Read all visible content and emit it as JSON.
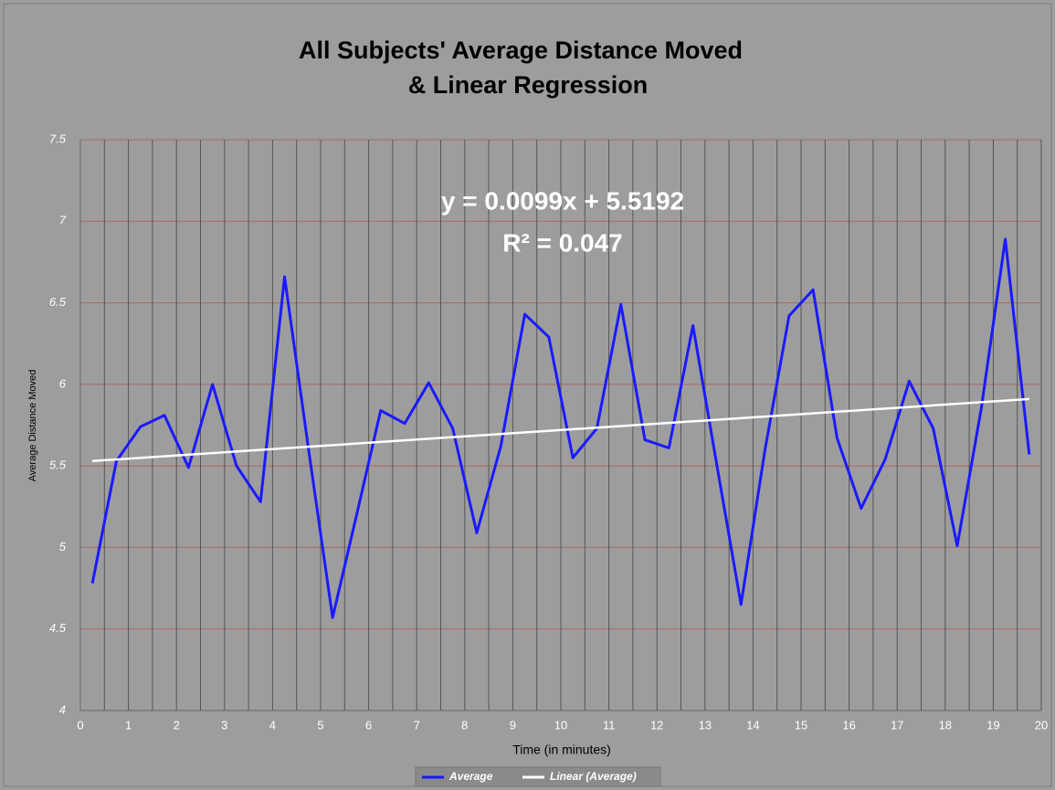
{
  "chart_data": {
    "type": "line",
    "title": [
      "All Subjects' Average Distance Moved",
      "& Linear Regression"
    ],
    "annotations": [
      "y = 0.0099x + 5.5192",
      "R² = 0.047"
    ],
    "x_label": "Time (in minutes)",
    "y_label": "Average Distance Moved",
    "x": [
      0.25,
      0.75,
      1.25,
      1.75,
      2.25,
      2.75,
      3.25,
      3.75,
      4.25,
      4.75,
      5.25,
      5.75,
      6.25,
      6.75,
      7.25,
      7.75,
      8.25,
      8.75,
      9.25,
      9.75,
      10.25,
      10.75,
      11.25,
      11.75,
      12.25,
      12.75,
      13.25,
      13.75,
      14.25,
      14.75,
      15.25,
      15.75,
      16.25,
      16.75,
      17.25,
      17.75,
      18.25,
      18.75,
      19.25,
      19.75
    ],
    "series": [
      {
        "name": "Average",
        "color": "#1a1aff",
        "values": [
          4.78,
          5.53,
          5.74,
          5.81,
          5.49,
          6.0,
          5.5,
          5.28,
          6.66,
          5.6,
          4.57,
          5.2,
          5.84,
          5.76,
          6.01,
          5.73,
          5.09,
          5.62,
          6.43,
          6.29,
          5.55,
          5.73,
          6.49,
          5.66,
          5.61,
          6.36,
          5.5,
          4.65,
          5.6,
          6.42,
          6.58,
          5.67,
          5.24,
          5.54,
          6.02,
          5.73,
          5.01,
          5.85,
          6.89,
          5.57
        ]
      },
      {
        "name": "Linear (Average)",
        "color": "#ffffff",
        "x": [
          0.25,
          19.75
        ],
        "values": [
          5.53,
          5.91
        ]
      }
    ],
    "xlim": [
      0,
      20
    ],
    "xticks": [
      0,
      1,
      2,
      3,
      4,
      5,
      6,
      7,
      8,
      9,
      10,
      11,
      12,
      13,
      14,
      15,
      16,
      17,
      18,
      19,
      20
    ],
    "ylim": [
      4,
      7.5
    ],
    "yticks": [
      4,
      4.5,
      5,
      5.5,
      6,
      6.5,
      7,
      7.5
    ],
    "grid": true,
    "legend": "bottom"
  }
}
